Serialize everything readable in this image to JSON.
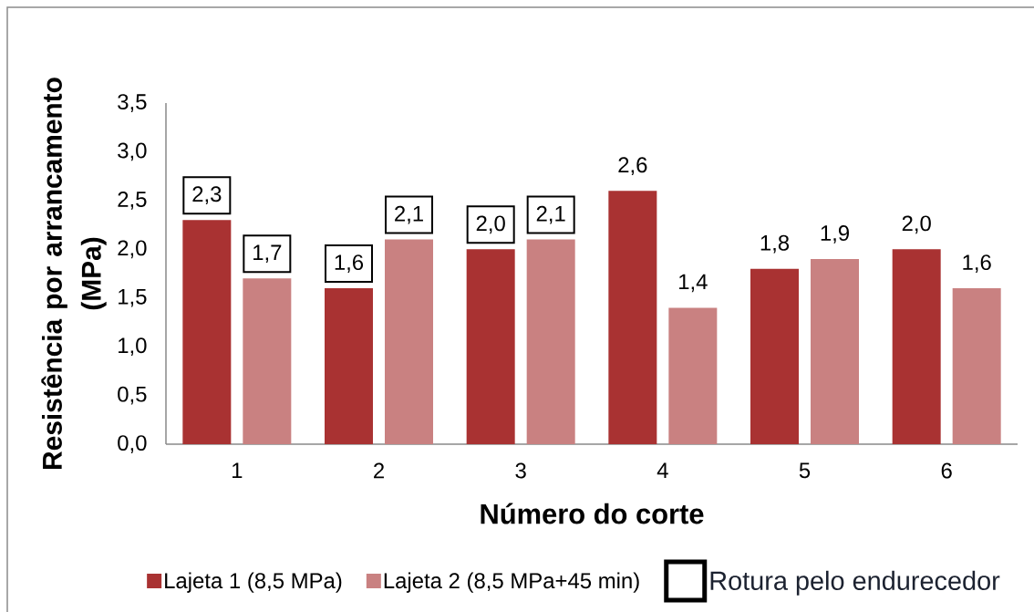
{
  "chart_data": {
    "type": "bar",
    "xlabel": "Número do corte",
    "ylabel": "Resistência por arrancamento (MPa)",
    "categories": [
      "1",
      "2",
      "3",
      "4",
      "5",
      "6"
    ],
    "series": [
      {
        "name": "Lajeta 1 (8,5 MPa)",
        "color": "#a93232",
        "values": [
          2.3,
          1.6,
          2.0,
          2.6,
          1.8,
          2.0
        ],
        "value_labels": [
          null,
          null,
          null,
          "2,6",
          "1,8",
          "2,0"
        ]
      },
      {
        "name": "Lajeta 2 (8,5 MPa+45 min)",
        "color": "#c98181",
        "values": [
          1.7,
          2.1,
          2.1,
          1.4,
          1.9,
          1.6
        ],
        "value_labels": [
          null,
          null,
          null,
          "1,4",
          "1,9",
          "1,6"
        ]
      }
    ],
    "ylim": [
      0,
      3.5
    ],
    "yticks": [
      {
        "value": 0,
        "label": "0,0"
      },
      {
        "value": 0.5,
        "label": "0,5"
      },
      {
        "value": 1,
        "label": "1,0"
      },
      {
        "value": 1.5,
        "label": "1,5"
      },
      {
        "value": 2,
        "label": "2,0"
      },
      {
        "value": 2.5,
        "label": "2,5"
      },
      {
        "value": 3,
        "label": "3,0"
      },
      {
        "value": 3.5,
        "label": "3,5"
      }
    ],
    "annotations": [
      {
        "text": "2,3",
        "y": 2.3
      },
      {
        "text": "1,7",
        "y": 1.7
      },
      {
        "text": "1,6",
        "y": 1.6
      },
      {
        "text": "2,1",
        "y": 2.1
      },
      {
        "text": "2,0",
        "y": 2.0
      },
      {
        "text": "2,1",
        "y": 2.1
      },
      "Rotura pelo endurecedor"
    ],
    "legend": "bottom"
  }
}
